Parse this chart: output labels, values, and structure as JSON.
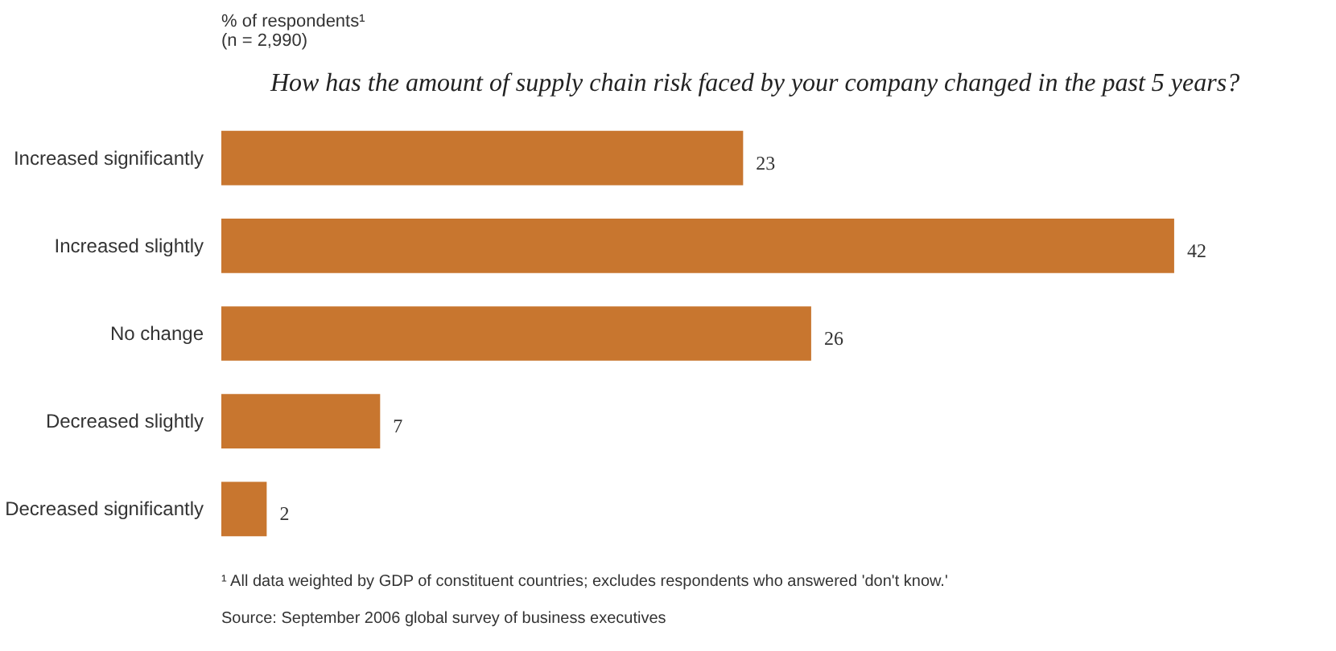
{
  "chart_data": {
    "type": "bar",
    "orientation": "horizontal",
    "title": "How has the amount of supply chain risk faced by your company changed in the past 5 years?",
    "subtitle": "% of respondents¹\n(n = 2,990)",
    "categories": [
      "Increased significantly",
      "Increased slightly",
      "No change",
      "Decreased slightly",
      "Decreased significantly"
    ],
    "values": [
      23,
      42,
      26,
      7,
      2
    ],
    "color": "#c8762f",
    "data_labels": true,
    "grid": false,
    "annotations": [
      "¹ All data weighted by GDP of constituent countries; excludes respondents who answered 'don't know.'",
      "Source: September 2006 global survey of business executives"
    ]
  }
}
